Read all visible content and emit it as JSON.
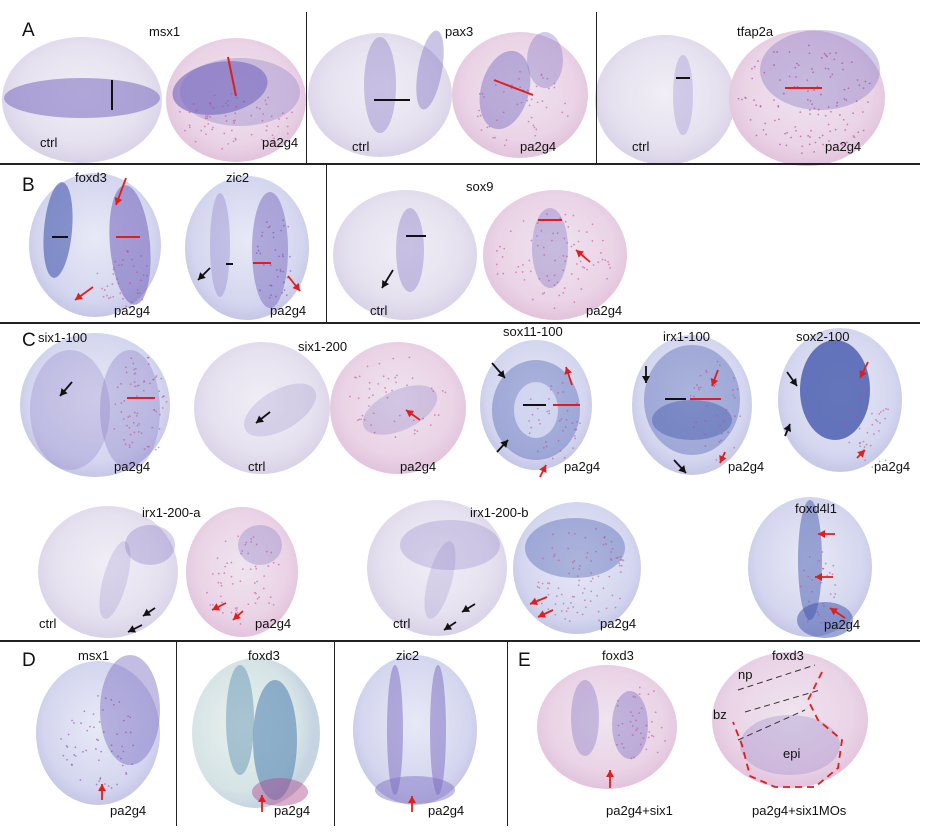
{
  "panels": {
    "A": {
      "letter": "A",
      "genes": [
        "msx1",
        "pax3",
        "tfap2a"
      ],
      "labels": [
        "ctrl",
        "pa2g4",
        "ctrl",
        "pa2g4",
        "ctrl",
        "pa2g4"
      ]
    },
    "B": {
      "letter": "B",
      "genes": [
        "foxd3",
        "zic2",
        "sox9"
      ],
      "labels": [
        "pa2g4",
        "pa2g4",
        "ctrl",
        "pa2g4"
      ]
    },
    "C": {
      "letter": "C",
      "genes": [
        "six1-100",
        "six1-200",
        "sox11-100",
        "irx1-100",
        "sox2-100",
        "irx1-200-a",
        "irx1-200-b",
        "foxd4l1"
      ],
      "labels": [
        "pa2g4",
        "ctrl",
        "pa2g4",
        "pa2g4",
        "pa2g4",
        "pa2g4",
        "ctrl",
        "pa2g4",
        "ctrl",
        "pa2g4",
        "pa2g4"
      ]
    },
    "D": {
      "letter": "D",
      "genes": [
        "msx1",
        "foxd3",
        "zic2"
      ],
      "labels": [
        "pa2g4",
        "pa2g4",
        "pa2g4"
      ]
    },
    "E": {
      "letter": "E",
      "genes": [
        "foxd3",
        "foxd3"
      ],
      "labels": [
        "pa2g4+six1",
        "pa2g4+six1MOs"
      ],
      "annotations": [
        "np",
        "bz",
        "epi"
      ]
    }
  },
  "colors": {
    "stain": "#7b6cc0",
    "stain_dark": "#3a4fa8",
    "embryo_bg": "#e9e3ee",
    "pink": "#e7a3c6",
    "red_mark": "#e11e1e",
    "black_mark": "#111111"
  }
}
